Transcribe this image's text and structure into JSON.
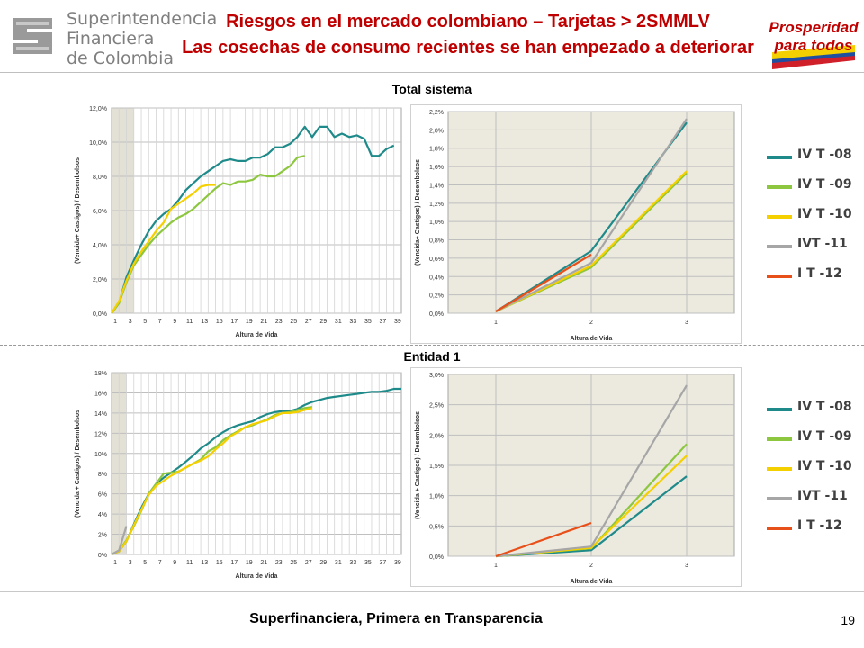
{
  "header": {
    "logo_lines": [
      "Superintendencia",
      "Financiera",
      "de Colombia"
    ],
    "title_line1": "Riesgos en el mercado colombiano – Tarjetas > 2SMMLV",
    "title_line2": "Las cosechas de consumo recientes se han empezado a deteriorar",
    "logo_right_line1": "Prosperidad",
    "logo_right_line2": "para todos"
  },
  "sections": {
    "top_title": "Total sistema",
    "bottom_title": "Entidad  1"
  },
  "legend": {
    "items": [
      {
        "label": "IV T -08",
        "color": "#1f8a8a"
      },
      {
        "label": "IV T -09",
        "color": "#8dc63f"
      },
      {
        "label": "IV T -10",
        "color": "#f5d000"
      },
      {
        "label": "IVT -11",
        "color": "#a6a6a6"
      },
      {
        "label": "I T -12",
        "color": "#e8501a"
      }
    ]
  },
  "footer": {
    "text": "Superfinanciera, Primera en Transparencia",
    "page_number": "19"
  },
  "chart_data": [
    {
      "id": "total-long",
      "type": "line",
      "xlabel": "Altura de Vida",
      "ylabel": "(Vencida+ Castigos) / Desembolsos",
      "ylim": [
        0,
        12
      ],
      "xlim": [
        0,
        39
      ],
      "y_ticks": [
        "0,0%",
        "2,0%",
        "4,0%",
        "6,0%",
        "8,0%",
        "10,0%",
        "12,0%"
      ],
      "y_tick_values": [
        0,
        2,
        4,
        6,
        8,
        10,
        12
      ],
      "x_ticks": [
        "1",
        "3",
        "5",
        "7",
        "9",
        "11",
        "13",
        "15",
        "17",
        "19",
        "21",
        "23",
        "25",
        "27",
        "29",
        "31",
        "33",
        "35",
        "37",
        "39"
      ],
      "grid": true,
      "highlight_band": [
        0,
        3
      ],
      "series": [
        {
          "key": "IV T -08",
          "color": "#1f8a8a",
          "x": [
            0,
            1,
            2,
            3,
            4,
            5,
            6,
            7,
            8,
            9,
            10,
            11,
            12,
            13,
            14,
            15,
            16,
            17,
            18,
            19,
            20,
            21,
            22,
            23,
            24,
            25,
            26,
            27,
            28,
            29,
            30,
            31,
            32,
            33,
            34,
            35,
            36,
            37,
            38
          ],
          "values": [
            0,
            0.6,
            2.1,
            3.1,
            4.0,
            4.8,
            5.4,
            5.8,
            6.1,
            6.6,
            7.2,
            7.6,
            8.0,
            8.3,
            8.6,
            8.9,
            9.0,
            8.9,
            8.9,
            9.1,
            9.1,
            9.3,
            9.7,
            9.7,
            9.9,
            10.3,
            10.9,
            10.3,
            10.9,
            10.9,
            10.3,
            10.5,
            10.3,
            10.4,
            10.2,
            9.2,
            9.2,
            9.6,
            9.8
          ]
        },
        {
          "key": "IV T -09",
          "color": "#8dc63f",
          "x": [
            0,
            1,
            2,
            3,
            4,
            5,
            6,
            7,
            8,
            9,
            10,
            11,
            12,
            13,
            14,
            15,
            16,
            17,
            18,
            19,
            20,
            21,
            22,
            23,
            24,
            25,
            26
          ],
          "values": [
            0,
            0.6,
            1.8,
            2.8,
            3.4,
            4.0,
            4.5,
            4.9,
            5.3,
            5.6,
            5.8,
            6.1,
            6.5,
            6.9,
            7.3,
            7.6,
            7.5,
            7.7,
            7.7,
            7.8,
            8.1,
            8.0,
            8.0,
            8.3,
            8.6,
            9.1,
            9.2
          ]
        },
        {
          "key": "IV T -10",
          "color": "#f5d000",
          "x": [
            0,
            1,
            2,
            3,
            4,
            5,
            6,
            7,
            8,
            9,
            10,
            11,
            12,
            13,
            14
          ],
          "values": [
            0,
            0.7,
            1.9,
            2.9,
            3.6,
            4.2,
            4.8,
            5.3,
            6.1,
            6.4,
            6.7,
            7.0,
            7.4,
            7.5,
            7.5
          ]
        }
      ]
    },
    {
      "id": "total-short",
      "type": "line",
      "xlabel": "Altura de Vida",
      "ylabel": "(Vencida+ Castigos) / Desembolsos",
      "ylim": [
        0,
        2.2
      ],
      "xlim": [
        0.5,
        3.5
      ],
      "y_ticks": [
        "0,0%",
        "0,2%",
        "0,4%",
        "0,6%",
        "0,8%",
        "1,0%",
        "1,2%",
        "1,4%",
        "1,6%",
        "1,8%",
        "2,0%",
        "2,2%"
      ],
      "y_tick_values": [
        0,
        0.2,
        0.4,
        0.6,
        0.8,
        1.0,
        1.2,
        1.4,
        1.6,
        1.8,
        2.0,
        2.2
      ],
      "x_ticks": [
        "1",
        "2",
        "3"
      ],
      "x_tick_values": [
        1,
        2,
        3
      ],
      "grid": true,
      "series": [
        {
          "key": "IV T -08",
          "color": "#1f8a8a",
          "x": [
            1,
            2,
            3
          ],
          "values": [
            0.02,
            0.68,
            2.08
          ]
        },
        {
          "key": "IV T -09",
          "color": "#8dc63f",
          "x": [
            1,
            2,
            3
          ],
          "values": [
            0.02,
            0.5,
            1.53
          ]
        },
        {
          "key": "IV T -10",
          "color": "#f5d000",
          "x": [
            1,
            2,
            3
          ],
          "values": [
            0.02,
            0.52,
            1.55
          ]
        },
        {
          "key": "IVT -11",
          "color": "#a6a6a6",
          "x": [
            1,
            2,
            3
          ],
          "values": [
            0.02,
            0.55,
            2.12
          ]
        },
        {
          "key": "I T -12",
          "color": "#e8501a",
          "x": [
            1,
            2
          ],
          "values": [
            0.02,
            0.64
          ]
        }
      ]
    },
    {
      "id": "entidad-long",
      "type": "line",
      "xlabel": "Altura de Vida",
      "ylabel": "(Vencida + Castigos) / Desembolsos",
      "ylim": [
        0,
        18
      ],
      "xlim": [
        0,
        39
      ],
      "y_ticks": [
        "0%",
        "2%",
        "4%",
        "6%",
        "8%",
        "10%",
        "12%",
        "14%",
        "16%",
        "18%"
      ],
      "y_tick_values": [
        0,
        2,
        4,
        6,
        8,
        10,
        12,
        14,
        16,
        18
      ],
      "x_ticks": [
        "1",
        "3",
        "5",
        "7",
        "9",
        "11",
        "13",
        "15",
        "17",
        "19",
        "21",
        "23",
        "25",
        "27",
        "29",
        "31",
        "33",
        "35",
        "37",
        "39"
      ],
      "grid": true,
      "highlight_band": [
        0,
        2
      ],
      "series": [
        {
          "key": "IV T -08",
          "color": "#1f8a8a",
          "x": [
            0,
            1,
            2,
            3,
            4,
            5,
            6,
            7,
            8,
            9,
            10,
            11,
            12,
            13,
            14,
            15,
            16,
            17,
            18,
            19,
            20,
            21,
            22,
            23,
            24,
            25,
            26,
            27,
            28,
            29,
            30,
            31,
            32,
            33,
            34,
            35,
            36,
            37,
            38,
            39
          ],
          "values": [
            0,
            0.3,
            1.3,
            3.0,
            4.6,
            6.0,
            7.0,
            7.6,
            8.1,
            8.6,
            9.2,
            9.8,
            10.5,
            11.0,
            11.6,
            12.1,
            12.5,
            12.8,
            13.0,
            13.2,
            13.6,
            13.9,
            14.1,
            14.2,
            14.2,
            14.4,
            14.8,
            15.1,
            15.3,
            15.5,
            15.6,
            15.7,
            15.8,
            15.9,
            16.0,
            16.1,
            16.1,
            16.2,
            16.4,
            16.4
          ]
        },
        {
          "key": "IV T -09",
          "color": "#8dc63f",
          "x": [
            0,
            1,
            2,
            3,
            4,
            5,
            6,
            7,
            8,
            9,
            10,
            11,
            12,
            13,
            14,
            15,
            16,
            17,
            18,
            19,
            20,
            21,
            22,
            23,
            24,
            25,
            26,
            27
          ],
          "values": [
            0,
            0.4,
            1.4,
            2.8,
            4.3,
            6.0,
            7.0,
            8.0,
            8.1,
            8.2,
            8.6,
            9.0,
            9.4,
            10.2,
            10.6,
            11.3,
            11.8,
            12.2,
            12.6,
            12.8,
            13.1,
            13.4,
            13.8,
            14.0,
            14.1,
            14.3,
            14.5,
            14.6
          ]
        },
        {
          "key": "IV T -10",
          "color": "#f5d000",
          "x": [
            0,
            1,
            2,
            3,
            4,
            5,
            6,
            7,
            8,
            9,
            10,
            11,
            12,
            13,
            14,
            15,
            16,
            17,
            18,
            19,
            20,
            21,
            22,
            23,
            24,
            25,
            26,
            27
          ],
          "values": [
            0,
            0.3,
            1.3,
            2.9,
            4.4,
            5.9,
            6.8,
            7.3,
            7.8,
            8.2,
            8.6,
            9.0,
            9.3,
            9.7,
            10.4,
            11.0,
            11.7,
            12.1,
            12.6,
            12.9,
            13.1,
            13.3,
            13.7,
            14.0,
            14.0,
            14.1,
            14.3,
            14.5
          ]
        },
        {
          "key": "IVT -11",
          "color": "#a6a6a6",
          "x": [
            0,
            1,
            2
          ],
          "values": [
            0,
            0.4,
            2.8
          ]
        }
      ]
    },
    {
      "id": "entidad-short",
      "type": "line",
      "xlabel": "Altura de Vida",
      "ylabel": "(Vencida + Castigos) / Desembolsos",
      "ylim": [
        0,
        3.0
      ],
      "xlim": [
        0.5,
        3.5
      ],
      "y_ticks": [
        "0,0%",
        "0,5%",
        "1,0%",
        "1,5%",
        "2,0%",
        "2,5%",
        "3,0%"
      ],
      "y_tick_values": [
        0,
        0.5,
        1.0,
        1.5,
        2.0,
        2.5,
        3.0
      ],
      "x_ticks": [
        "1",
        "2",
        "3"
      ],
      "x_tick_values": [
        1,
        2,
        3
      ],
      "grid": true,
      "series": [
        {
          "key": "IV T -08",
          "color": "#1f8a8a",
          "x": [
            1,
            2,
            3
          ],
          "values": [
            0.0,
            0.1,
            1.32
          ]
        },
        {
          "key": "IV T -09",
          "color": "#8dc63f",
          "x": [
            1,
            2,
            3
          ],
          "values": [
            0.0,
            0.13,
            1.85
          ]
        },
        {
          "key": "IV T -10",
          "color": "#f5d000",
          "x": [
            1,
            2,
            3
          ],
          "values": [
            0.0,
            0.14,
            1.66
          ]
        },
        {
          "key": "IVT -11",
          "color": "#a6a6a6",
          "x": [
            1,
            2,
            3
          ],
          "values": [
            0.0,
            0.16,
            2.82
          ]
        },
        {
          "key": "I T -12",
          "color": "#e8501a",
          "x": [
            1,
            2
          ],
          "values": [
            0.0,
            0.55
          ]
        }
      ]
    }
  ]
}
